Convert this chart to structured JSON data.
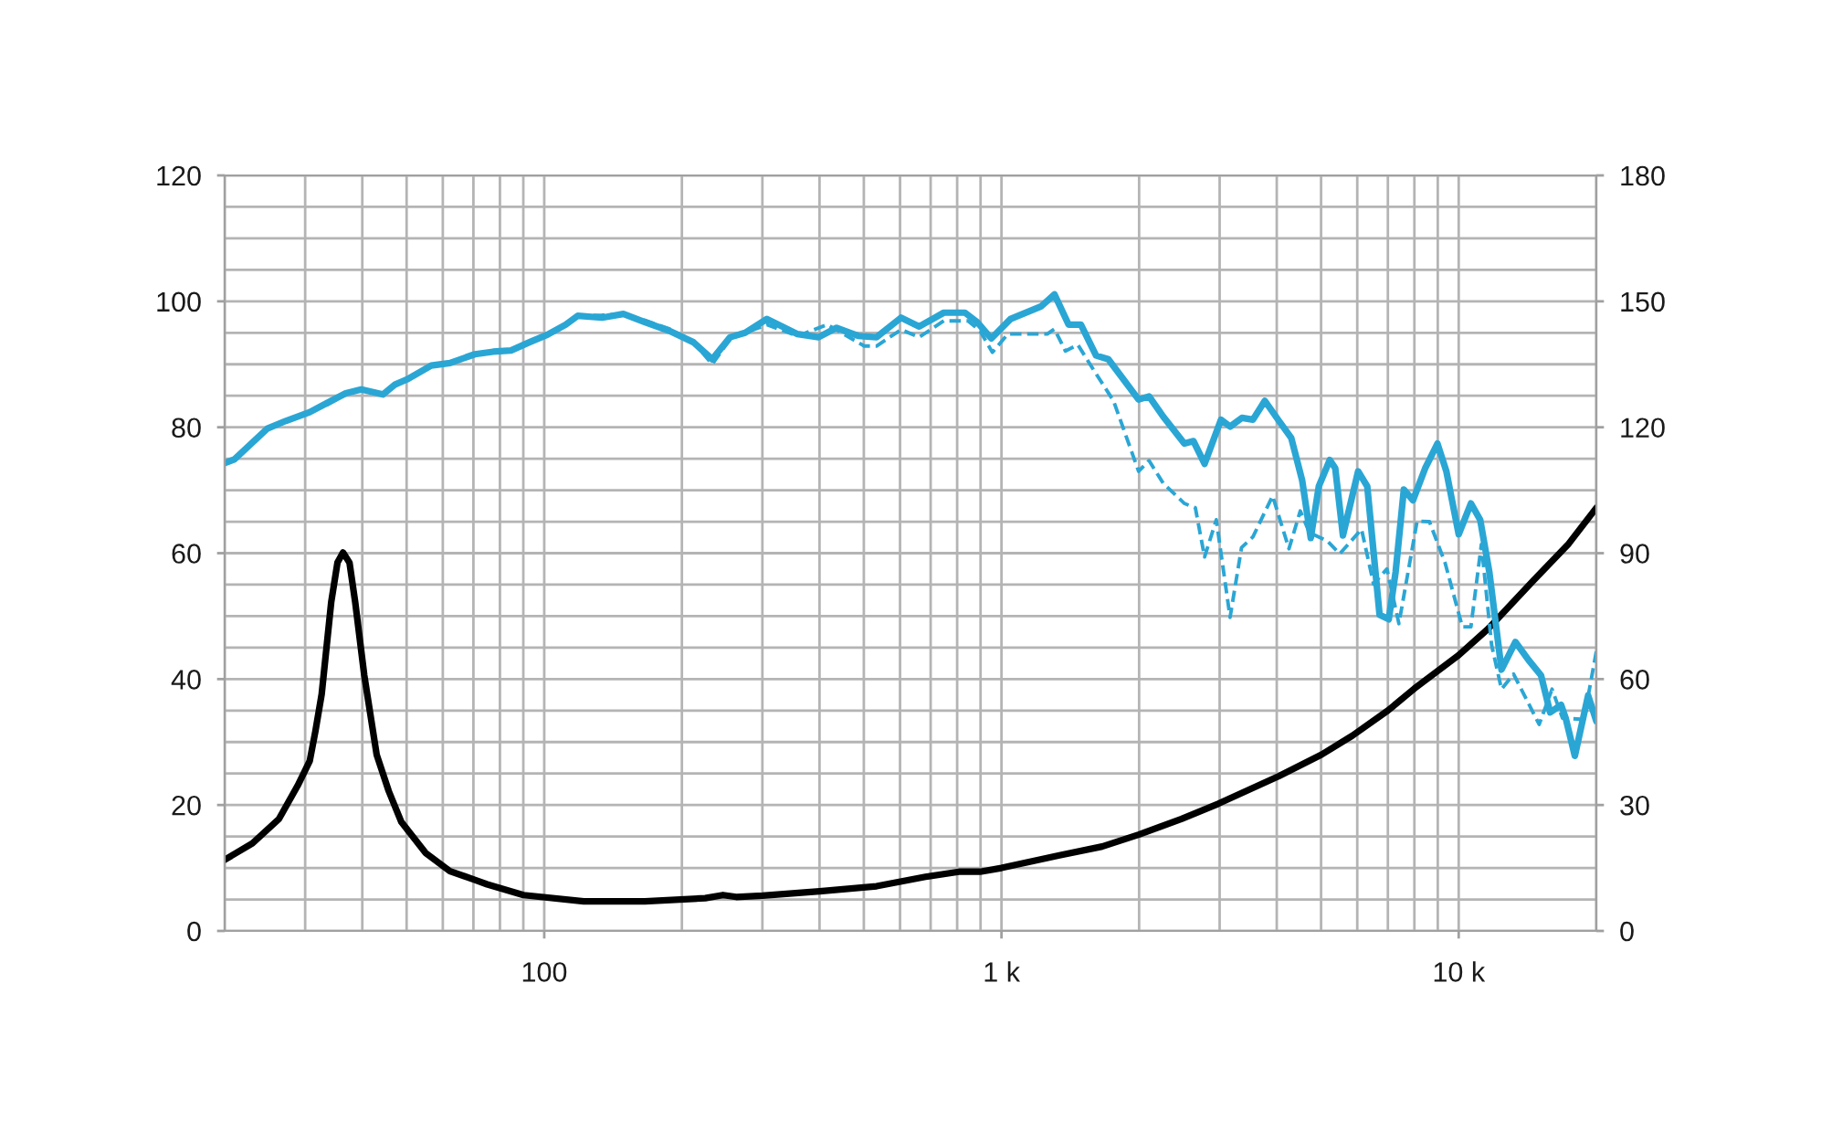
{
  "chart_data": {
    "type": "line",
    "series": [
      {
        "color": "#000000",
        "line_style": "solid",
        "x": [
          20,
          23,
          26.3,
          28.9,
          30.7,
          31.6,
          32.6,
          34.2,
          35.3,
          36.3,
          37.5,
          38.6,
          40.4,
          43,
          45.7,
          48.7,
          55,
          62.2,
          70.5,
          75,
          90.1,
          122,
          166,
          225,
          246,
          263,
          300,
          400,
          533,
          682,
          807,
          898,
          1000,
          1339,
          1660,
          1995,
          2477,
          2979,
          4045,
          5012,
          5850,
          7000,
          8000,
          9000,
          10000,
          11600,
          14500,
          17400,
          20000
        ],
        "values": [
          11.3,
          13.9,
          17.8,
          23.1,
          27.0,
          31.8,
          37.6,
          52.2,
          58.5,
          60.1,
          58.5,
          52.2,
          40.6,
          28.0,
          22.2,
          17.3,
          12.4,
          9.5,
          8.1,
          7.4,
          5.7,
          4.7,
          4.7,
          5.2,
          5.7,
          5.4,
          5.6,
          6.3,
          7.1,
          8.6,
          9.4,
          9.4,
          10.0,
          12.0,
          13.4,
          15.3,
          17.8,
          20.2,
          24.6,
          28.0,
          31.0,
          35.0,
          38.5,
          41.3,
          43.8,
          48.0,
          55.5,
          61.5,
          67.2
        ]
      },
      {
        "color": "#2aa6d5",
        "line_style": "dashed",
        "x": [
          20,
          21,
          24.8,
          27.2,
          30.7,
          33.6,
          36.8,
          39.8,
          44.4,
          47.2,
          50.1,
          56.6,
          62.2,
          70.5,
          77.3,
          84.6,
          92.8,
          101.6,
          111.4,
          118.4,
          133.8,
          149,
          166,
          188,
          212,
          233,
          255,
          275,
          307,
          358,
          416,
          501,
          533,
          603,
          661,
          748,
          845,
          898,
          955,
          1032,
          1259,
          1306,
          1380,
          1469,
          1610,
          1758,
          1995,
          2103,
          2258,
          2512,
          2655,
          2781,
          2950,
          3162,
          3350,
          3548,
          3917,
          4254,
          4503,
          4713,
          5164,
          5495,
          6130,
          6514,
          6966,
          7400,
          8110,
          8630,
          9333,
          10186,
          10634,
          11210,
          11803,
          12406,
          13183,
          14997,
          16000,
          16866,
          18785,
          20000
        ],
        "values": [
          74.3,
          74.9,
          79.8,
          81.0,
          82.4,
          83.6,
          85.2,
          86.0,
          85.2,
          86.8,
          87.6,
          89.8,
          90.2,
          91.6,
          92.0,
          92.2,
          93.5,
          94.7,
          96.3,
          97.7,
          97.8,
          98.0,
          97.0,
          95.6,
          93.5,
          90.0,
          94.0,
          95.0,
          96.3,
          94.5,
          96.3,
          92.9,
          92.9,
          95.5,
          94.3,
          96.9,
          96.9,
          95.3,
          91.9,
          94.8,
          94.8,
          95.6,
          92.1,
          93.1,
          88.5,
          84.2,
          73.0,
          74.7,
          71.1,
          67.9,
          67.2,
          59.4,
          65.3,
          49.8,
          60.9,
          62.6,
          69.1,
          60.7,
          66.7,
          63.3,
          61.9,
          59.9,
          63.8,
          55.1,
          57.5,
          48.8,
          65.1,
          65.0,
          58.5,
          48.3,
          48.3,
          61.4,
          45.4,
          38.4,
          40.8,
          32.8,
          38.4,
          33.8,
          33.6,
          44.4
        ]
      },
      {
        "color": "#2aa6d5",
        "line_style": "solid",
        "x": [
          20,
          21,
          24.8,
          27.2,
          30.7,
          33.6,
          36.8,
          39.8,
          44.4,
          47.2,
          50.1,
          56.6,
          62.2,
          70.5,
          77.3,
          84.6,
          92.8,
          101.6,
          111.4,
          118.4,
          133.8,
          149,
          166,
          188,
          212,
          233,
          255,
          275,
          307,
          358,
          398,
          436,
          486,
          533,
          603,
          661,
          748,
          832,
          885,
          950,
          1047,
          1221,
          1306,
          1402,
          1492,
          1610,
          1713,
          1995,
          2103,
          2258,
          2512,
          2630,
          2781,
          3020,
          3162,
          3357,
          3548,
          3767,
          4045,
          4303,
          4545,
          4747,
          4943,
          5224,
          5370,
          5582,
          6026,
          6310,
          6714,
          7031,
          7278,
          7586,
          7943,
          8448,
          8985,
          9397,
          10000,
          10634,
          11143,
          11668,
          12406,
          13305,
          14223,
          15136,
          15849,
          16749,
          17140,
          17947,
          19190,
          20000
        ],
        "values": [
          74.3,
          74.9,
          79.8,
          81.0,
          82.4,
          83.9,
          85.4,
          86.0,
          85.2,
          86.8,
          87.6,
          89.8,
          90.2,
          91.6,
          92.0,
          92.2,
          93.5,
          94.7,
          96.3,
          97.7,
          97.4,
          98.0,
          96.7,
          95.3,
          93.5,
          90.8,
          94.3,
          95.0,
          97.2,
          94.8,
          94.3,
          95.8,
          94.5,
          94.3,
          97.4,
          96.0,
          98.2,
          98.2,
          96.7,
          94.1,
          97.2,
          99.2,
          101.1,
          96.3,
          96.3,
          91.4,
          90.8,
          84.4,
          84.9,
          81.7,
          77.4,
          77.8,
          74.2,
          81.2,
          80.1,
          81.5,
          81.2,
          84.2,
          81.0,
          78.3,
          71.6,
          62.4,
          70.6,
          74.8,
          73.5,
          62.8,
          73.0,
          70.6,
          50.2,
          49.5,
          57.0,
          70.1,
          68.4,
          73.5,
          77.4,
          73.0,
          63.0,
          67.9,
          65.3,
          57.0,
          41.5,
          45.9,
          43.0,
          40.6,
          34.7,
          35.9,
          33.8,
          27.8,
          37.4,
          33.3
        ]
      }
    ],
    "log": "x",
    "xlim": [
      20,
      20000
    ],
    "xticks": [
      {
        "value": 20,
        "label": null
      },
      {
        "value": 30,
        "label": null
      },
      {
        "value": 40,
        "label": null
      },
      {
        "value": 50,
        "label": null
      },
      {
        "value": 60,
        "label": null
      },
      {
        "value": 70,
        "label": null
      },
      {
        "value": 80,
        "label": null
      },
      {
        "value": 90,
        "label": null
      },
      100,
      {
        "value": 200,
        "label": null
      },
      {
        "value": 300,
        "label": null
      },
      {
        "value": 400,
        "label": null
      },
      {
        "value": 500,
        "label": null
      },
      {
        "value": 600,
        "label": null
      },
      {
        "value": 700,
        "label": null
      },
      {
        "value": 800,
        "label": null
      },
      {
        "value": 900,
        "label": null
      },
      {
        "value": 1000,
        "label": "1 k"
      },
      {
        "value": 2000,
        "label": null
      },
      {
        "value": 3000,
        "label": null
      },
      {
        "value": 4000,
        "label": null
      },
      {
        "value": 5000,
        "label": null
      },
      {
        "value": 6000,
        "label": null
      },
      {
        "value": 7000,
        "label": null
      },
      {
        "value": 8000,
        "label": null
      },
      {
        "value": 9000,
        "label": null
      },
      {
        "value": 10000,
        "label": "10 k"
      },
      {
        "value": 20000,
        "label": null
      }
    ],
    "ylim": [
      0,
      120
    ],
    "yticks": [
      0,
      {
        "value": 5,
        "label": null
      },
      {
        "value": 10,
        "label": null
      },
      {
        "value": 15,
        "label": null
      },
      20,
      {
        "value": 25,
        "label": null
      },
      {
        "value": 30,
        "label": null
      },
      {
        "value": 35,
        "label": null
      },
      40,
      {
        "value": 45,
        "label": null
      },
      {
        "value": 50,
        "label": null
      },
      {
        "value": 55,
        "label": null
      },
      60,
      {
        "value": 65,
        "label": null
      },
      {
        "value": 70,
        "label": null
      },
      {
        "value": 75,
        "label": null
      },
      80,
      {
        "value": 85,
        "label": null
      },
      {
        "value": 90,
        "label": null
      },
      {
        "value": 95,
        "label": null
      },
      100,
      {
        "value": 105,
        "label": null
      },
      {
        "value": 110,
        "label": null
      },
      {
        "value": 115,
        "label": null
      },
      120
    ],
    "y2lim": [
      0,
      180
    ],
    "y2ticks": [
      0,
      30,
      60,
      90,
      120,
      150,
      180
    ],
    "grid": true
  }
}
